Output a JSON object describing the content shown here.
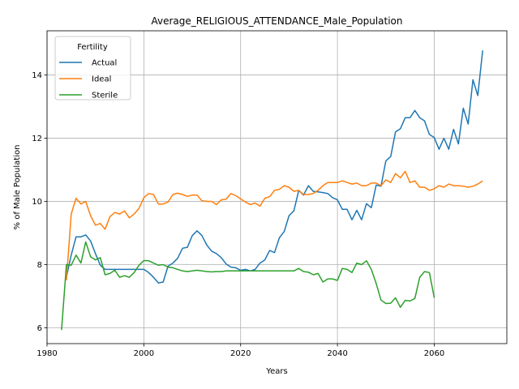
{
  "chart_data": {
    "type": "line",
    "title": "Average_RELIGIOUS_ATTENDANCE_Male_Population",
    "xlabel": "Years",
    "ylabel": "% of Male Population",
    "xlim": [
      1980,
      2075
    ],
    "ylim": [
      5.5,
      15.4
    ],
    "xticks": [
      1980,
      2000,
      2020,
      2040,
      2060
    ],
    "yticks": [
      6,
      8,
      10,
      12,
      14
    ],
    "grid": true,
    "legend": {
      "title": "Fertility",
      "placement": "top-left"
    },
    "series": [
      {
        "name": "Actual",
        "color": "#1f77b4",
        "x": [
          1984,
          1985,
          1986,
          1987,
          1988,
          1989,
          1990,
          1991,
          1992,
          1993,
          1994,
          1995,
          1996,
          1997,
          1998,
          1999,
          2000,
          2001,
          2002,
          2003,
          2004,
          2005,
          2006,
          2007,
          2008,
          2009,
          2010,
          2011,
          2012,
          2013,
          2014,
          2015,
          2016,
          2017,
          2018,
          2019,
          2020,
          2021,
          2022,
          2023,
          2024,
          2025,
          2026,
          2027,
          2028,
          2029,
          2030,
          2031,
          2032,
          2033,
          2034,
          2035,
          2036,
          2037,
          2038,
          2039,
          2040,
          2041,
          2042,
          2043,
          2044,
          2045,
          2046,
          2047,
          2048,
          2049,
          2050,
          2051,
          2052,
          2053,
          2054,
          2055,
          2056,
          2057,
          2058,
          2059,
          2060,
          2061,
          2062,
          2063,
          2064,
          2065,
          2066,
          2067,
          2068,
          2069,
          2070
        ],
        "values": [
          7.6,
          8.3,
          8.88,
          8.88,
          8.94,
          8.75,
          8.35,
          7.98,
          7.85,
          7.85,
          7.85,
          7.85,
          7.85,
          7.85,
          7.85,
          7.85,
          7.85,
          7.75,
          7.6,
          7.42,
          7.45,
          7.95,
          8.05,
          8.2,
          8.52,
          8.55,
          8.92,
          9.07,
          8.92,
          8.62,
          8.43,
          8.35,
          8.22,
          8.02,
          7.92,
          7.9,
          7.82,
          7.85,
          7.8,
          7.85,
          8.05,
          8.15,
          8.45,
          8.38,
          8.85,
          9.05,
          9.55,
          9.7,
          10.35,
          10.2,
          10.5,
          10.32,
          10.3,
          10.28,
          10.25,
          10.12,
          10.05,
          9.75,
          9.75,
          9.42,
          9.72,
          9.42,
          9.93,
          9.8,
          10.52,
          10.48,
          11.28,
          11.42,
          12.2,
          12.3,
          12.65,
          12.65,
          12.88,
          12.65,
          12.55,
          12.12,
          12.02,
          11.65,
          12.0,
          11.65,
          12.28,
          11.82,
          12.95,
          12.45,
          13.85,
          13.35,
          14.78
        ]
      },
      {
        "name": "Ideal",
        "color": "#ff7f0e",
        "x": [
          1984,
          1985,
          1986,
          1987,
          1988,
          1989,
          1990,
          1991,
          1992,
          1993,
          1994,
          1995,
          1996,
          1997,
          1998,
          1999,
          2000,
          2001,
          2002,
          2003,
          2004,
          2005,
          2006,
          2007,
          2008,
          2009,
          2010,
          2011,
          2012,
          2013,
          2014,
          2015,
          2016,
          2017,
          2018,
          2019,
          2020,
          2021,
          2022,
          2023,
          2024,
          2025,
          2026,
          2027,
          2028,
          2029,
          2030,
          2031,
          2032,
          2033,
          2034,
          2035,
          2036,
          2037,
          2038,
          2039,
          2040,
          2041,
          2042,
          2043,
          2044,
          2045,
          2046,
          2047,
          2048,
          2049,
          2050,
          2051,
          2052,
          2053,
          2054,
          2055,
          2056,
          2057,
          2058,
          2059,
          2060,
          2061,
          2062,
          2063,
          2064,
          2065,
          2066,
          2067,
          2068,
          2069,
          2070
        ],
        "values": [
          7.5,
          9.6,
          10.1,
          9.92,
          10.0,
          9.55,
          9.25,
          9.3,
          9.12,
          9.52,
          9.65,
          9.6,
          9.7,
          9.48,
          9.6,
          9.78,
          10.12,
          10.25,
          10.22,
          9.92,
          9.92,
          9.98,
          10.22,
          10.26,
          10.22,
          10.16,
          10.2,
          10.2,
          10.02,
          10.0,
          10.0,
          9.9,
          10.05,
          10.07,
          10.25,
          10.18,
          10.08,
          9.98,
          9.9,
          9.95,
          9.85,
          10.1,
          10.15,
          10.35,
          10.38,
          10.5,
          10.45,
          10.32,
          10.35,
          10.22,
          10.22,
          10.25,
          10.35,
          10.5,
          10.6,
          10.6,
          10.6,
          10.65,
          10.6,
          10.55,
          10.58,
          10.5,
          10.5,
          10.58,
          10.58,
          10.5,
          10.68,
          10.6,
          10.88,
          10.75,
          10.95,
          10.6,
          10.65,
          10.45,
          10.45,
          10.35,
          10.4,
          10.5,
          10.45,
          10.55,
          10.5,
          10.5,
          10.48,
          10.45,
          10.48,
          10.55,
          10.65
        ]
      },
      {
        "name": "Sterile",
        "color": "#2ca02c",
        "x": [
          1983,
          1984,
          1985,
          1986,
          1987,
          1988,
          1989,
          1990,
          1991,
          1992,
          1993,
          1994,
          1995,
          1996,
          1997,
          1998,
          1999,
          2000,
          2001,
          2002,
          2003,
          2004,
          2005,
          2006,
          2007,
          2008,
          2009,
          2010,
          2011,
          2012,
          2013,
          2014,
          2015,
          2016,
          2017,
          2018,
          2019,
          2020,
          2021,
          2022,
          2023,
          2024,
          2025,
          2026,
          2027,
          2028,
          2029,
          2030,
          2031,
          2032,
          2033,
          2034,
          2035,
          2036,
          2037,
          2038,
          2039,
          2040,
          2041,
          2042,
          2043,
          2044,
          2045,
          2046,
          2047,
          2048,
          2049,
          2050,
          2051,
          2052,
          2053,
          2054,
          2055,
          2056,
          2057,
          2058,
          2059,
          2060
        ],
        "values": [
          5.93,
          8.0,
          7.98,
          8.3,
          8.05,
          8.72,
          8.25,
          8.15,
          8.22,
          7.68,
          7.72,
          7.82,
          7.6,
          7.65,
          7.6,
          7.75,
          7.98,
          8.13,
          8.12,
          8.05,
          7.98,
          8.0,
          7.92,
          7.9,
          7.85,
          7.8,
          7.78,
          7.8,
          7.82,
          7.8,
          7.78,
          7.77,
          7.78,
          7.78,
          7.8,
          7.8,
          7.8,
          7.8,
          7.8,
          7.8,
          7.8,
          7.8,
          7.8,
          7.8,
          7.8,
          7.8,
          7.8,
          7.8,
          7.8,
          7.88,
          7.78,
          7.76,
          7.68,
          7.72,
          7.45,
          7.55,
          7.55,
          7.5,
          7.88,
          7.85,
          7.75,
          8.05,
          8.0,
          8.12,
          7.85,
          7.4,
          6.88,
          6.77,
          6.78,
          6.95,
          6.65,
          6.87,
          6.85,
          6.93,
          7.6,
          7.78,
          7.75,
          6.95
        ]
      }
    ]
  }
}
